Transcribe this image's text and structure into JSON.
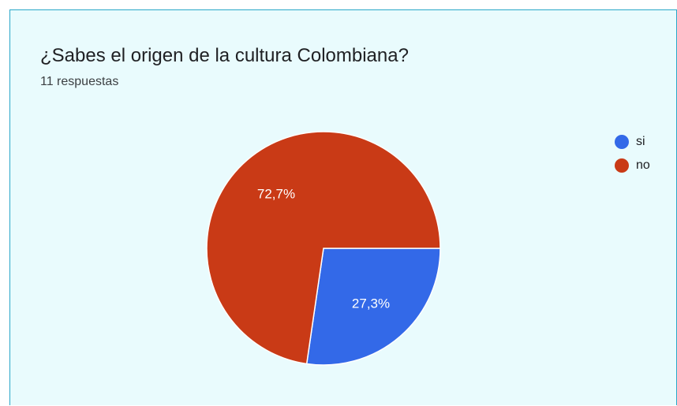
{
  "question": {
    "title": "¿Sabes el origen de la cultura Colombiana?",
    "responses": "11 respuestas"
  },
  "colors": {
    "card_background": "#e9fbfd",
    "card_border": "#2aa7c9"
  },
  "chart_data": {
    "type": "pie",
    "title": "¿Sabes el origen de la cultura Colombiana?",
    "subtitle": "11 respuestas",
    "legend_position": "right",
    "start_angle_deg": 90,
    "direction": "clockwise",
    "slices": [
      {
        "label": "si",
        "value": 27.3,
        "value_label": "27,3%",
        "color": "#3369e8"
      },
      {
        "label": "no",
        "value": 72.7,
        "value_label": "72,7%",
        "color": "#c93a16"
      }
    ]
  }
}
